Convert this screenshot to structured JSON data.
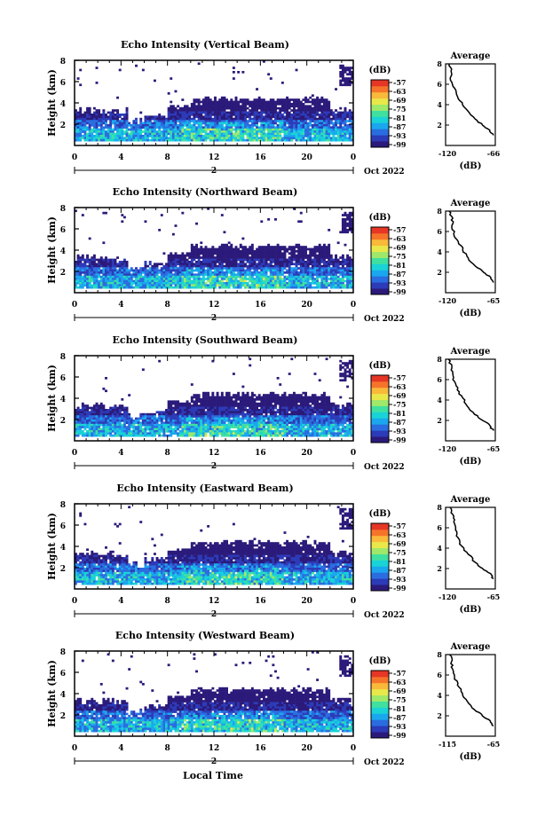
{
  "figure": {
    "xlabel": "Local Time",
    "colorbar_unit": "(dB)",
    "colorbar_ticks": [
      "-57",
      "-63",
      "-69",
      "-75",
      "-81",
      "-87",
      "-93",
      "-99"
    ],
    "colorbar_colors": [
      "#2b1a7a",
      "#2c3bb8",
      "#2a6de0",
      "#1aa7ee",
      "#19d3d6",
      "#3fe0a0",
      "#9fe86a",
      "#e9e84a",
      "#f9b93a",
      "#f6742a",
      "#e53626"
    ],
    "time_ticks": [
      "0",
      "4",
      "8",
      "12",
      "16",
      "20",
      "0"
    ],
    "day_marker": "2",
    "date_label": "Oct 2022",
    "height_ticks": [
      "2",
      "4",
      "6",
      "8"
    ],
    "average_title": "Average",
    "average_xlabel": "(dB)"
  },
  "panels": [
    {
      "title": "Echo Intensity (Vertical Beam)",
      "ylabel": "Height (km)",
      "avg_ticks": [
        "-120",
        "-66"
      ]
    },
    {
      "title": "Echo Intensity (Northward Beam)",
      "ylabel": "Height (km)",
      "avg_ticks": [
        "-120",
        "-65"
      ]
    },
    {
      "title": "Echo Intensity (Southward Beam)",
      "ylabel": "Height (km)",
      "avg_ticks": [
        "-120",
        "-65"
      ]
    },
    {
      "title": "Echo Intensity (Eastward Beam)",
      "ylabel": "Height (km)",
      "avg_ticks": [
        "-120",
        "-65"
      ]
    },
    {
      "title": "Echo Intensity (Westward Beam)",
      "ylabel": "Height (km)",
      "avg_ticks": [
        "-115",
        "-65"
      ]
    }
  ],
  "chart_data": [
    {
      "type": "heatmap",
      "title": "Echo Intensity (Vertical Beam)",
      "xlabel": "",
      "ylabel": "Height (km)",
      "x_range": [
        0,
        24
      ],
      "y_range": [
        0,
        8
      ],
      "color_range": [
        -99,
        -57
      ],
      "colorbar_label": "(dB)",
      "average_profile": {
        "title": "Average",
        "xlabel": "(dB)",
        "xlim": [
          -120,
          -66
        ],
        "points": [
          [
            -68,
            1.0
          ],
          [
            -72,
            1.5
          ],
          [
            -80,
            2.0
          ],
          [
            -88,
            2.6
          ],
          [
            -96,
            3.4
          ],
          [
            -102,
            4.2
          ],
          [
            -108,
            5.0
          ],
          [
            -112,
            5.8
          ],
          [
            -115,
            6.6
          ],
          [
            -114,
            7.3
          ],
          [
            -116,
            8.0
          ]
        ]
      }
    },
    {
      "type": "heatmap",
      "title": "Echo Intensity (Northward Beam)",
      "xlabel": "",
      "ylabel": "Height (km)",
      "x_range": [
        0,
        24
      ],
      "y_range": [
        0,
        8
      ],
      "color_range": [
        -99,
        -57
      ],
      "colorbar_label": "(dB)",
      "average_profile": {
        "title": "Average",
        "xlabel": "(dB)",
        "xlim": [
          -120,
          -65
        ],
        "points": [
          [
            -67,
            1.0
          ],
          [
            -70,
            1.5
          ],
          [
            -78,
            2.0
          ],
          [
            -87,
            2.6
          ],
          [
            -95,
            3.4
          ],
          [
            -101,
            4.2
          ],
          [
            -106,
            5.0
          ],
          [
            -111,
            5.8
          ],
          [
            -113,
            6.6
          ],
          [
            -112,
            7.3
          ],
          [
            -116,
            8.0
          ]
        ]
      }
    },
    {
      "type": "heatmap",
      "title": "Echo Intensity (Southward Beam)",
      "xlabel": "",
      "ylabel": "Height (km)",
      "x_range": [
        0,
        24
      ],
      "y_range": [
        0,
        8
      ],
      "color_range": [
        -99,
        -57
      ],
      "colorbar_label": "(dB)",
      "average_profile": {
        "title": "Average",
        "xlabel": "(dB)",
        "xlim": [
          -120,
          -65
        ],
        "points": [
          [
            -67,
            1.0
          ],
          [
            -71,
            1.5
          ],
          [
            -79,
            2.0
          ],
          [
            -88,
            2.6
          ],
          [
            -96,
            3.4
          ],
          [
            -101,
            4.2
          ],
          [
            -107,
            5.0
          ],
          [
            -110,
            5.8
          ],
          [
            -112,
            6.6
          ],
          [
            -113,
            7.3
          ],
          [
            -117,
            8.0
          ]
        ]
      }
    },
    {
      "type": "heatmap",
      "title": "Echo Intensity (Eastward Beam)",
      "xlabel": "",
      "ylabel": "Height (km)",
      "x_range": [
        0,
        24
      ],
      "y_range": [
        0,
        8
      ],
      "color_range": [
        -99,
        -57
      ],
      "colorbar_label": "(dB)",
      "average_profile": {
        "title": "Average",
        "xlabel": "(dB)",
        "xlim": [
          -120,
          -65
        ],
        "points": [
          [
            -67,
            1.0
          ],
          [
            -70,
            1.5
          ],
          [
            -79,
            2.0
          ],
          [
            -87,
            2.6
          ],
          [
            -95,
            3.4
          ],
          [
            -102,
            4.2
          ],
          [
            -106,
            5.0
          ],
          [
            -109,
            5.8
          ],
          [
            -111,
            6.6
          ],
          [
            -112,
            7.3
          ],
          [
            -115,
            8.0
          ]
        ]
      }
    },
    {
      "type": "heatmap",
      "title": "Echo Intensity (Westward Beam)",
      "xlabel": "Local Time",
      "ylabel": "Height (km)",
      "x_range": [
        0,
        24
      ],
      "y_range": [
        0,
        8
      ],
      "color_range": [
        -99,
        -57
      ],
      "colorbar_label": "(dB)",
      "average_profile": {
        "title": "Average",
        "xlabel": "(dB)",
        "xlim": [
          -115,
          -65
        ],
        "points": [
          [
            -67,
            1.0
          ],
          [
            -70,
            1.5
          ],
          [
            -78,
            2.0
          ],
          [
            -86,
            2.6
          ],
          [
            -93,
            3.4
          ],
          [
            -98,
            4.2
          ],
          [
            -103,
            5.0
          ],
          [
            -106,
            5.8
          ],
          [
            -108,
            6.6
          ],
          [
            -109,
            7.3
          ],
          [
            -111,
            8.0
          ]
        ]
      }
    }
  ]
}
